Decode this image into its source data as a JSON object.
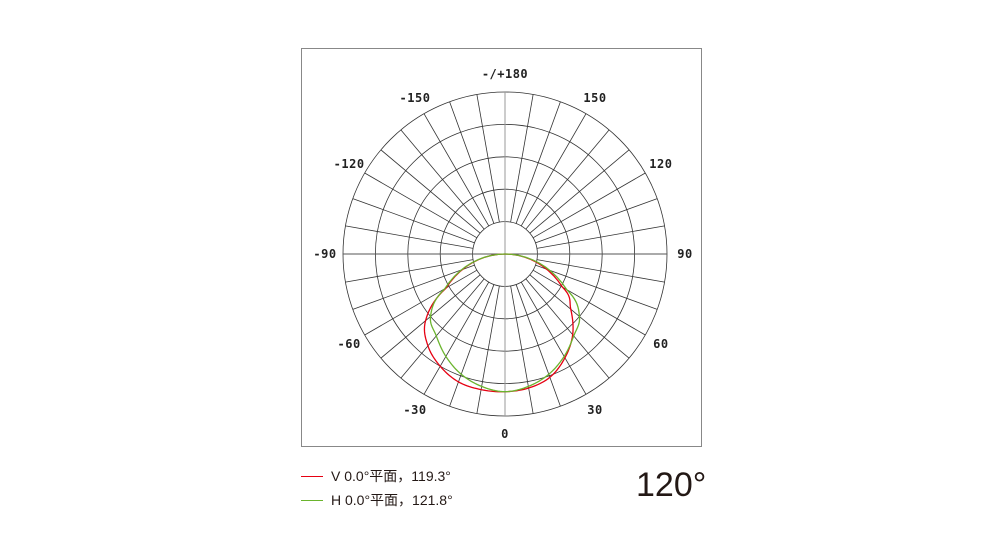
{
  "chart_data": {
    "type": "polar-line",
    "title": "",
    "angle_ticks": [
      "0",
      "30",
      "60",
      "90",
      "120",
      "150",
      "-/+180",
      "-150",
      "-120",
      "-90",
      "-60",
      "-30"
    ],
    "angle_tick_values": [
      0,
      30,
      60,
      90,
      120,
      150,
      180,
      -150,
      -120,
      -90,
      -60,
      -30
    ],
    "angle_zero": "bottom",
    "rings": 5,
    "spoke_step_deg": 10,
    "radial_range": [
      0,
      1
    ],
    "grid": true,
    "series": [
      {
        "name": "V 0.0°平面，119.3°",
        "color": "#e60012",
        "angles": [
          -90,
          -60,
          -50,
          -40,
          -30,
          -20,
          -10,
          0,
          10,
          20,
          30,
          40,
          50,
          60,
          90
        ],
        "values": [
          0,
          0.42,
          0.64,
          0.74,
          0.8,
          0.84,
          0.85,
          0.85,
          0.84,
          0.81,
          0.74,
          0.65,
          0.53,
          0.41,
          0
        ]
      },
      {
        "name": "H 0.0°平面，121.8°",
        "color": "#6ab42d",
        "angles": [
          -90,
          -60,
          -50,
          -40,
          -30,
          -20,
          -10,
          0,
          10,
          20,
          30,
          40,
          50,
          60,
          90
        ],
        "values": [
          0,
          0.43,
          0.6,
          0.66,
          0.73,
          0.79,
          0.83,
          0.85,
          0.83,
          0.79,
          0.73,
          0.66,
          0.6,
          0.44,
          0
        ]
      }
    ]
  },
  "beam_angle": "120°"
}
